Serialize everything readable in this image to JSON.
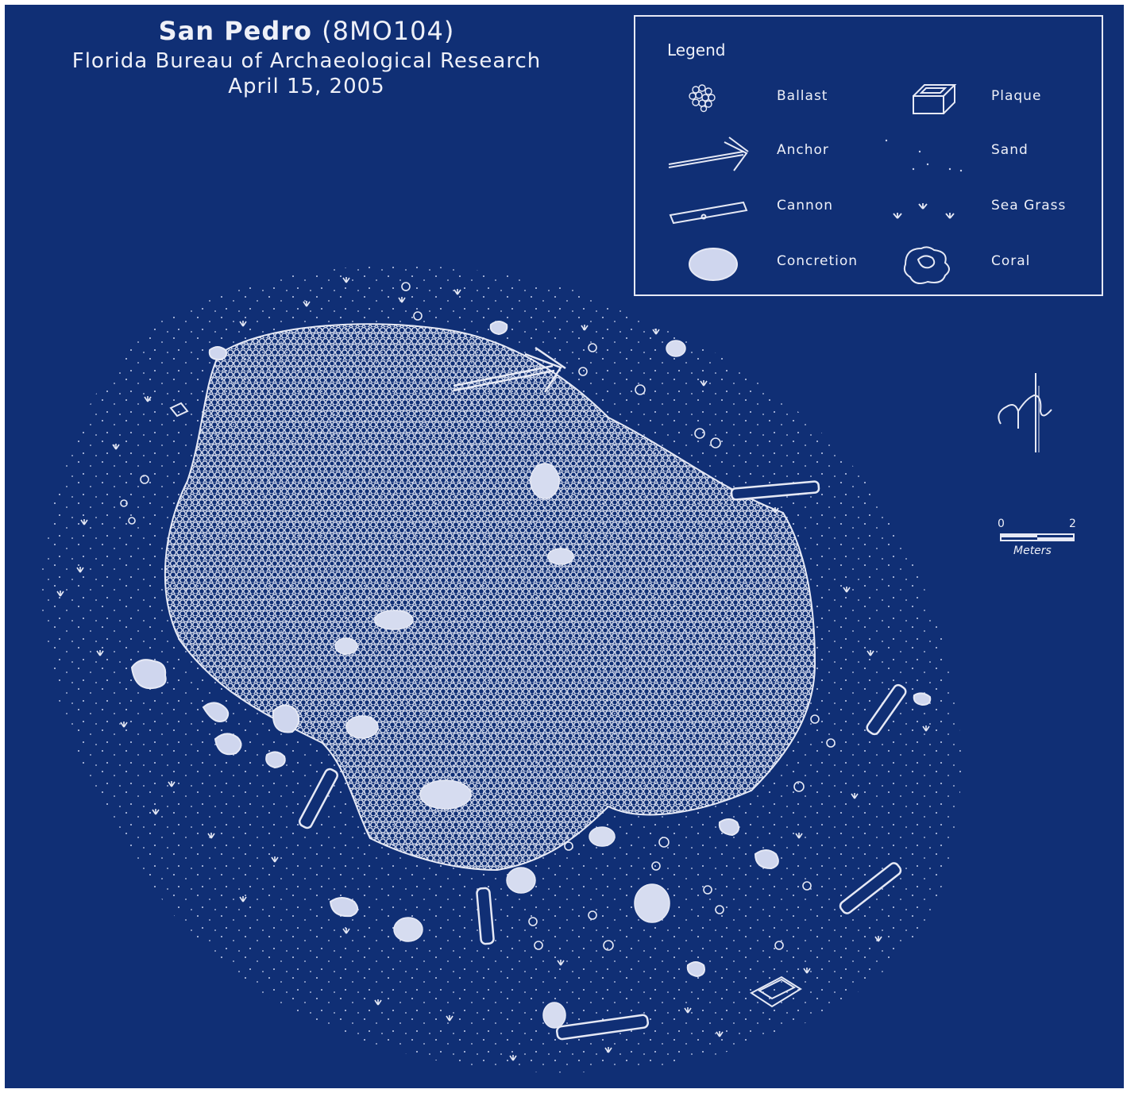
{
  "map": {
    "title": "San Pedro",
    "site_code": "(8MO104)",
    "organization": "Florida Bureau of Archaeological Research",
    "date": "April 15, 2005"
  },
  "legend": {
    "title": "Legend",
    "items": [
      {
        "label": "Ballast",
        "icon": "ballast-icon"
      },
      {
        "label": "Anchor",
        "icon": "anchor-icon"
      },
      {
        "label": "Cannon",
        "icon": "cannon-icon"
      },
      {
        "label": "Concretion",
        "icon": "concretion-icon"
      },
      {
        "label": "Plaque",
        "icon": "plaque-icon"
      },
      {
        "label": "Sand",
        "icon": "sand-icon"
      },
      {
        "label": "Sea Grass",
        "icon": "sea-grass-icon"
      },
      {
        "label": "Coral",
        "icon": "coral-icon"
      }
    ]
  },
  "north_arrow": {
    "label": "N"
  },
  "scale_bar": {
    "min": "0",
    "max": "2",
    "unit": "Meters"
  },
  "colors": {
    "background": "#102f75",
    "ink": "#e6e9f5"
  }
}
